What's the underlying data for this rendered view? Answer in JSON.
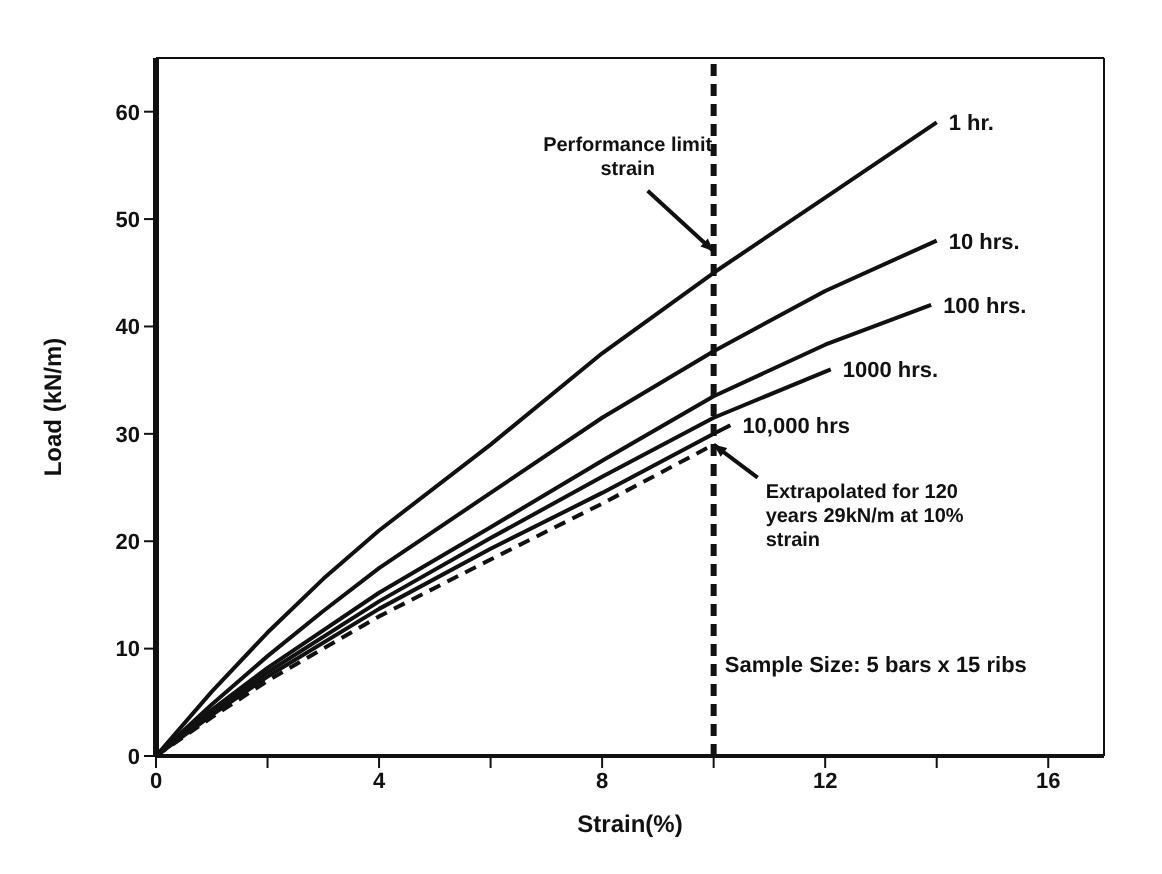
{
  "chart_data": {
    "type": "line",
    "xlabel": "Strain(%)",
    "ylabel": "Load (kN/m)",
    "xlim": [
      0,
      17
    ],
    "ylim": [
      0,
      65
    ],
    "xticks": [
      0,
      {
        "value": 2,
        "label": null
      },
      4,
      {
        "value": 6,
        "label": null
      },
      8,
      {
        "value": 10,
        "label": null
      },
      12,
      {
        "value": 14,
        "label": null
      },
      16
    ],
    "yticks": [
      0,
      10,
      20,
      30,
      40,
      50,
      60
    ],
    "marker": "none",
    "series": [
      {
        "name": "1 hr.",
        "color": "#111111",
        "x": [
          0,
          1,
          2,
          3,
          4,
          6,
          8,
          10,
          12,
          14
        ],
        "values": [
          0,
          6,
          11.5,
          16.5,
          21,
          29,
          37.5,
          45,
          52,
          59
        ]
      },
      {
        "name": "10 hrs.",
        "color": "#111111",
        "x": [
          0,
          1,
          2,
          3,
          4,
          6,
          8,
          10,
          12,
          14
        ],
        "values": [
          0,
          4.8,
          9.3,
          13.5,
          17.5,
          24.5,
          31.5,
          37.7,
          43.3,
          48
        ]
      },
      {
        "name": "100 hrs.",
        "color": "#111111",
        "x": [
          0,
          1,
          2,
          4,
          6,
          8,
          10,
          12,
          13.9
        ],
        "values": [
          0,
          4.3,
          8.2,
          15.2,
          21.3,
          27.5,
          33.5,
          38.3,
          42
        ]
      },
      {
        "name": "1000 hrs.",
        "color": "#111111",
        "x": [
          0,
          1,
          2,
          4,
          6,
          8,
          10,
          12.1
        ],
        "values": [
          0,
          4,
          7.8,
          14.4,
          20.3,
          26,
          31.5,
          36
        ]
      },
      {
        "name": "10,000 hrs",
        "color": "#111111",
        "x": [
          0,
          1,
          2,
          4,
          6,
          8,
          10,
          10.3
        ],
        "values": [
          0,
          3.8,
          7.4,
          13.7,
          19.3,
          24.5,
          30,
          30.8
        ]
      },
      {
        "color": "#111111",
        "line_style": "dashed",
        "x": [
          0,
          1,
          2,
          4,
          6,
          8,
          10
        ],
        "values": [
          0,
          3.6,
          7,
          13,
          18.3,
          23.5,
          29
        ]
      }
    ],
    "ref_lines": [
      {
        "axis": "x",
        "value": 10,
        "color": "#111111",
        "line_style": "dashed"
      }
    ],
    "annotations": [
      {
        "text": "Performance limit strain",
        "x": 10,
        "y": 47
      },
      {
        "text": "Extrapolated for 120 years 29kN/m at 10% strain",
        "x": 10,
        "y": 29
      },
      "Sample Size: 5 bars x 15 ribs"
    ]
  }
}
